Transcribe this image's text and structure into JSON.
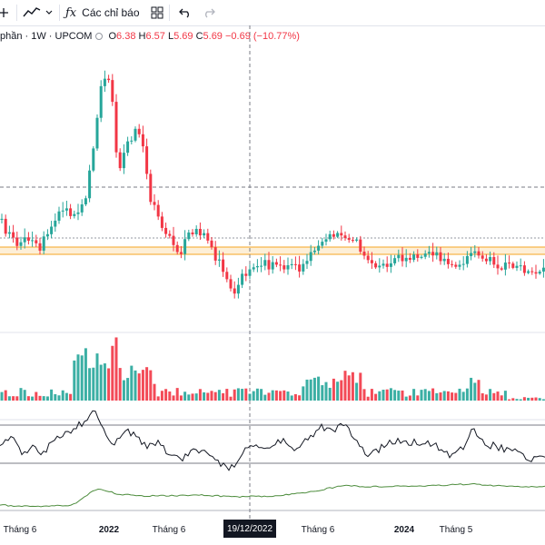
{
  "toolbar": {
    "indicators_label": "Các chỉ báo",
    "icons": [
      "plus-icon",
      "line-chart-icon",
      "chevron-down-icon",
      "fx-icon",
      "grid-icon",
      "undo-icon",
      "redo-icon"
    ]
  },
  "legend": {
    "symbol_text": "phần · 1W · UPCOM",
    "o_label": "O",
    "o_value": "6.38",
    "h_label": "H",
    "h_value": "6.57",
    "l_label": "L",
    "l_value": "5.69",
    "c_label": "C",
    "c_value": "5.69",
    "change": "−0.69 (−10.77%)"
  },
  "colors": {
    "up": "#26a69a",
    "down": "#f23645",
    "line": "#131722",
    "obv": "#4c8c3c",
    "zone": "#f5a623"
  },
  "x_axis": {
    "labels": [
      "Tháng 6",
      "2022",
      "Tháng 6",
      "Tháng 6",
      "2024",
      "Tháng 5"
    ],
    "cursor_label": "19/12/2022"
  }
}
